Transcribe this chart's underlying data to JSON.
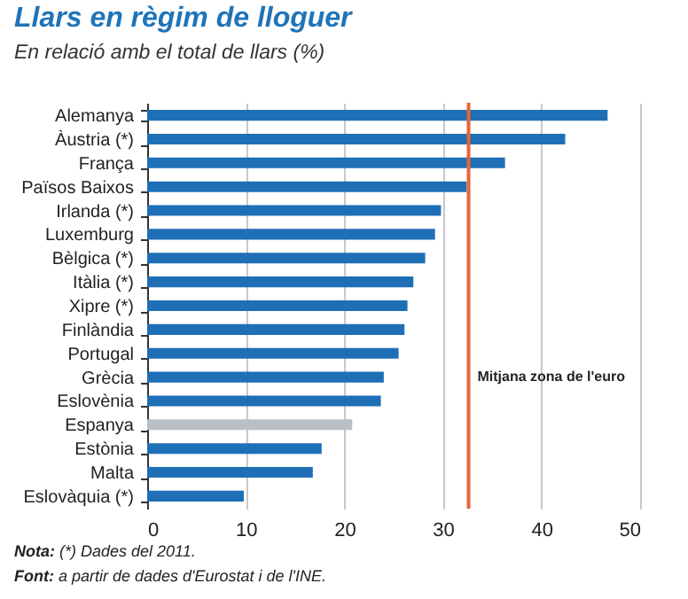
{
  "chart_data": {
    "type": "bar",
    "orientation": "horizontal",
    "title": "Llars en règim de lloguer",
    "subtitle": "En relació amb el total de llars (%)",
    "categories": [
      "Alemanya",
      "Àustria (*)",
      "França",
      "Països Baixos",
      "Irlanda (*)",
      "Luxemburg",
      "Bèlgica (*)",
      "Itàlia (*)",
      "Xipre (*)",
      "Finlàndia",
      "Portugal",
      "Grècia",
      "Eslovènia",
      "Espanya",
      "Estònia",
      "Malta",
      "Eslovàquia (*)"
    ],
    "values": [
      46.7,
      42.4,
      36.3,
      32.4,
      29.8,
      29.2,
      28.2,
      27.0,
      26.4,
      26.1,
      25.5,
      24.0,
      23.7,
      20.8,
      17.7,
      16.8,
      9.8
    ],
    "colors": [
      "#1f6fb6",
      "#1f6fb6",
      "#1f6fb6",
      "#1f6fb6",
      "#1f6fb6",
      "#1f6fb6",
      "#1f6fb6",
      "#1f6fb6",
      "#1f6fb6",
      "#1f6fb6",
      "#1f6fb6",
      "#1f6fb6",
      "#1f6fb6",
      "#b8c0c5",
      "#1f6fb6",
      "#1f6fb6",
      "#1f6fb6"
    ],
    "xlim": [
      0,
      50
    ],
    "xticks": [
      0,
      10,
      20,
      30,
      40,
      50
    ],
    "grid": "x",
    "ref_lines": [
      {
        "axis": "x",
        "value": 32.6,
        "label": "Mitjana zona de l'euro",
        "color": "#e8643a"
      }
    ],
    "annotations": [
      "Nota: (*) Dades del 2011.",
      "Font: a partir de dades d'Eurostat i de l'INE."
    ]
  }
}
